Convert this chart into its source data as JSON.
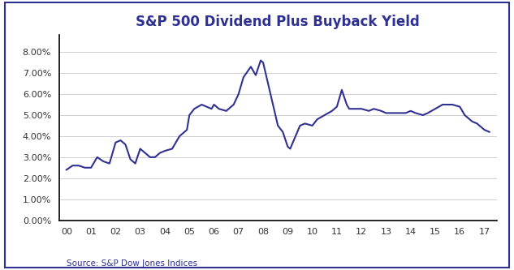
{
  "title": "S&P 500 Dividend Plus Buyback Yield",
  "source_text": "Source: S&P Dow Jones Indices",
  "line_color": "#2E3192",
  "background_color": "#ffffff",
  "border_color": "#2E3192",
  "x_labels": [
    "00",
    "01",
    "02",
    "03",
    "04",
    "05",
    "06",
    "07",
    "08",
    "09",
    "10",
    "11",
    "12",
    "13",
    "14",
    "15",
    "16",
    "17"
  ],
  "ylim": [
    0.0,
    0.088
  ],
  "yticks": [
    0.0,
    0.01,
    0.02,
    0.03,
    0.04,
    0.05,
    0.06,
    0.07,
    0.08
  ],
  "data": [
    [
      0,
      0.024
    ],
    [
      0.25,
      0.026
    ],
    [
      0.5,
      0.026
    ],
    [
      0.75,
      0.025
    ],
    [
      1.0,
      0.025
    ],
    [
      1.25,
      0.03
    ],
    [
      1.5,
      0.028
    ],
    [
      1.75,
      0.027
    ],
    [
      2.0,
      0.037
    ],
    [
      2.2,
      0.038
    ],
    [
      2.4,
      0.036
    ],
    [
      2.6,
      0.029
    ],
    [
      2.8,
      0.027
    ],
    [
      3.0,
      0.034
    ],
    [
      3.2,
      0.032
    ],
    [
      3.4,
      0.03
    ],
    [
      3.6,
      0.03
    ],
    [
      3.8,
      0.032
    ],
    [
      4.0,
      0.033
    ],
    [
      4.3,
      0.034
    ],
    [
      4.6,
      0.04
    ],
    [
      4.9,
      0.043
    ],
    [
      5.0,
      0.05
    ],
    [
      5.2,
      0.053
    ],
    [
      5.5,
      0.055
    ],
    [
      5.7,
      0.054
    ],
    [
      5.9,
      0.053
    ],
    [
      6.0,
      0.055
    ],
    [
      6.2,
      0.053
    ],
    [
      6.5,
      0.052
    ],
    [
      6.8,
      0.055
    ],
    [
      7.0,
      0.06
    ],
    [
      7.2,
      0.068
    ],
    [
      7.5,
      0.073
    ],
    [
      7.7,
      0.069
    ],
    [
      7.9,
      0.076
    ],
    [
      8.0,
      0.075
    ],
    [
      8.2,
      0.065
    ],
    [
      8.4,
      0.055
    ],
    [
      8.6,
      0.045
    ],
    [
      8.8,
      0.042
    ],
    [
      9.0,
      0.035
    ],
    [
      9.1,
      0.034
    ],
    [
      9.5,
      0.045
    ],
    [
      9.7,
      0.046
    ],
    [
      10.0,
      0.045
    ],
    [
      10.2,
      0.048
    ],
    [
      10.5,
      0.05
    ],
    [
      10.8,
      0.052
    ],
    [
      11.0,
      0.054
    ],
    [
      11.2,
      0.062
    ],
    [
      11.4,
      0.055
    ],
    [
      11.5,
      0.053
    ],
    [
      11.7,
      0.053
    ],
    [
      12.0,
      0.053
    ],
    [
      12.3,
      0.052
    ],
    [
      12.5,
      0.053
    ],
    [
      12.8,
      0.052
    ],
    [
      13.0,
      0.051
    ],
    [
      13.3,
      0.051
    ],
    [
      13.5,
      0.051
    ],
    [
      13.8,
      0.051
    ],
    [
      14.0,
      0.052
    ],
    [
      14.2,
      0.051
    ],
    [
      14.5,
      0.05
    ],
    [
      14.7,
      0.051
    ],
    [
      15.0,
      0.053
    ],
    [
      15.3,
      0.055
    ],
    [
      15.5,
      0.055
    ],
    [
      15.7,
      0.055
    ],
    [
      16.0,
      0.054
    ],
    [
      16.2,
      0.05
    ],
    [
      16.5,
      0.047
    ],
    [
      16.7,
      0.046
    ],
    [
      17.0,
      0.043
    ],
    [
      17.2,
      0.042
    ]
  ]
}
